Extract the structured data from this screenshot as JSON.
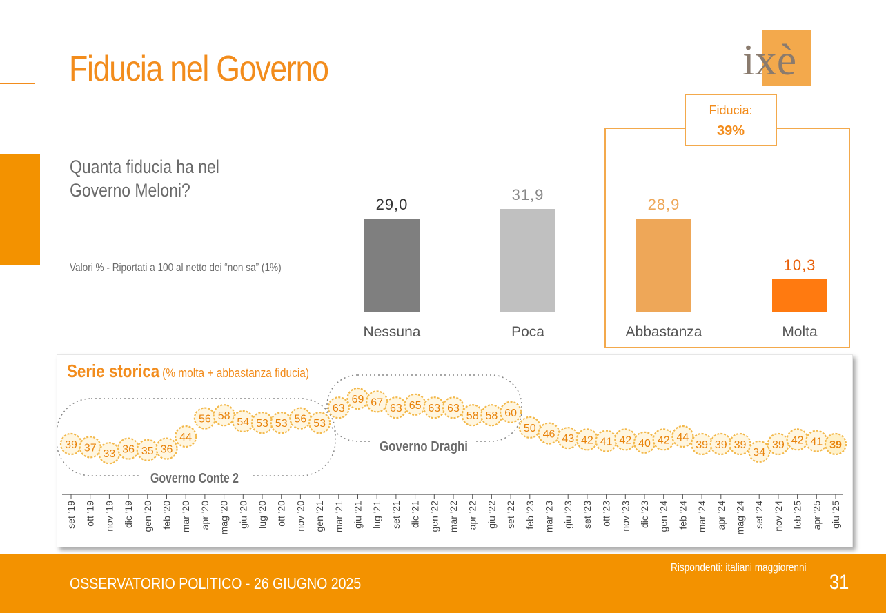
{
  "header": {
    "title": "Fiducia nel Governo",
    "logo_text": "ixè"
  },
  "question": {
    "line1": "Quanta fiducia ha nel",
    "line2": "Governo Meloni?"
  },
  "note": "Valori % - Riportati a 100 al netto dei “non sa” (1%)",
  "fiducia_box": {
    "label": "Fiducia:",
    "value": "39%"
  },
  "colors": {
    "accent": "#F39200",
    "title": "#F28C1C",
    "bar_nessuna": "#7f7f7f",
    "bar_poca": "#c0c0c0",
    "bar_abbastanza": "#EEA758",
    "bar_molta": "#FF7A10",
    "marker_border": "#F3B94C",
    "marker_fill": "#FFF6E0"
  },
  "chart_data": [
    {
      "type": "bar",
      "categories": [
        "Nessuna",
        "Poca",
        "Abbastanza",
        "Molta"
      ],
      "values": [
        29.0,
        31.9,
        28.9,
        10.3
      ],
      "value_labels": [
        "29,0",
        "31,9",
        "28,9",
        "10,3"
      ],
      "ylim": [
        0,
        35
      ]
    },
    {
      "type": "line",
      "title": "Serie storica",
      "subtitle": "(% molta + abbastanza fiducia)",
      "x": [
        "set '19",
        "ott '19",
        "nov '19",
        "dic '19",
        "gen '20",
        "feb '20",
        "mar '20",
        "apr '20",
        "mag '20",
        "giu '20",
        "lug '20",
        "ott '20",
        "nov '20",
        "gen '21",
        "mar '21",
        "giu '21",
        "lug '21",
        "set '21",
        "dic '21",
        "gen '22",
        "mar '22",
        "apr '22",
        "giu '22",
        "set '22",
        "feb '23",
        "mar '23",
        "giu '23",
        "set '23",
        "ott '23",
        "nov '23",
        "dic '23",
        "gen '24",
        "feb '24",
        "mar '24",
        "apr '24",
        "mag '24",
        "set '24",
        "nov '24",
        "feb '25",
        "apr '25",
        "giu '25"
      ],
      "values": [
        39,
        37,
        33,
        36,
        35,
        36,
        44,
        56,
        58,
        54,
        53,
        53,
        56,
        53,
        63,
        69,
        67,
        63,
        65,
        63,
        63,
        58,
        58,
        60,
        50,
        46,
        43,
        42,
        41,
        42,
        40,
        42,
        44,
        39,
        39,
        39,
        34,
        39,
        42,
        41,
        39
      ],
      "ylim": [
        30,
        72
      ],
      "annotations": [
        "Governo Conte 2",
        "Governo Draghi"
      ]
    }
  ],
  "footer": {
    "event": "OSSERVATORIO POLITICO - 26 GIUGNO 2025",
    "respondents": "Rispondenti: italiani maggiorenni",
    "page": "31"
  }
}
